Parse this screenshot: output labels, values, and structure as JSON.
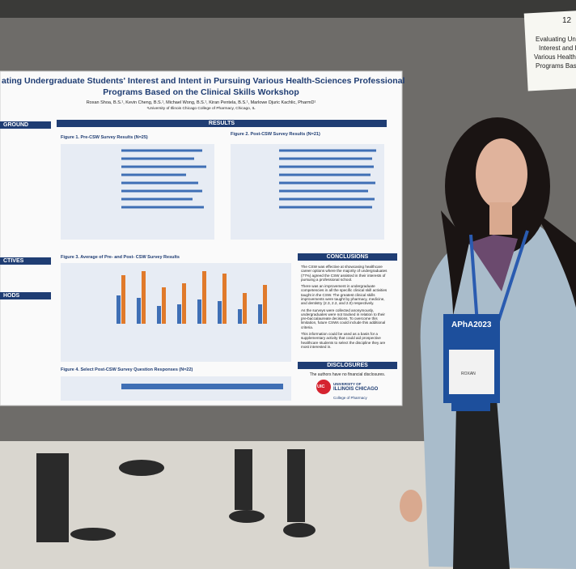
{
  "poster": {
    "title": "ating Undergraduate Students' Interest and Intent in Pursuing Various Health-Sciences Professional",
    "title_line2": "Programs Based on the Clinical Skills Workshop",
    "authors": "Roxan Shoa, B.S.¹, Kevin Cheng, B.S.¹, Michael Wong, B.S.¹, Kiran Pentela, B.S.¹, Marlowe Djuric Kachlic, PharmD¹",
    "affiliation": "¹University of Illinois Chicago College of Pharmacy, Chicago, IL",
    "left_headers": [
      "GROUND",
      "CTIVES",
      "HODS"
    ],
    "results_header": "RESULTS",
    "figures": [
      "Figure 1. Pre-CSW Survey Results (N=25)",
      "Figure 2. Post-CSW Survey Results (N=21)",
      "Figure 3. Average of Pre- and Post- CSW Survey Results",
      "Figure 4. Select Post-CSW Survey Question Responses (N=22)"
    ],
    "conclusions_header": "CONCLUSIONS",
    "conclusions": [
      "The CSW was effective at showcasing healthcare career options where the majority of undergraduates (77%) agreed the CSW assisted in their interests of pursuing a professional school.",
      "There was an improvement in undergraduate competencies in all the specific clinical skill activities taught in the CSW. The greatest clinical skills improvements were taught by pharmacy, medicine, and dentistry (2.3, 2.2, and 2.0) respectively.",
      "As the surveys were collected anonymously, undergraduates were not tracked in relation to their pre-baccalaureate decisions. To overcome this limitation, future CSWs could include this additional criteria.",
      "This information could be used as a basis for a supplementary activity that could aid prospective healthcare students to select the discipline they are most interested in."
    ],
    "disclosures_header": "DISCLOSURES",
    "disclosures": "The authors have no financial disclosures.",
    "logo": "UIC",
    "university": [
      "UNIVERSITY OF",
      "ILLINOIS CHICAGO",
      "College of Pharmacy"
    ]
  },
  "sign": {
    "number": "12",
    "lines": [
      "Evaluating Under",
      "Interest and In",
      "Various Health-S",
      "Programs Based"
    ]
  },
  "badge": {
    "brand": "APhA2023",
    "name": "ROXAN"
  }
}
